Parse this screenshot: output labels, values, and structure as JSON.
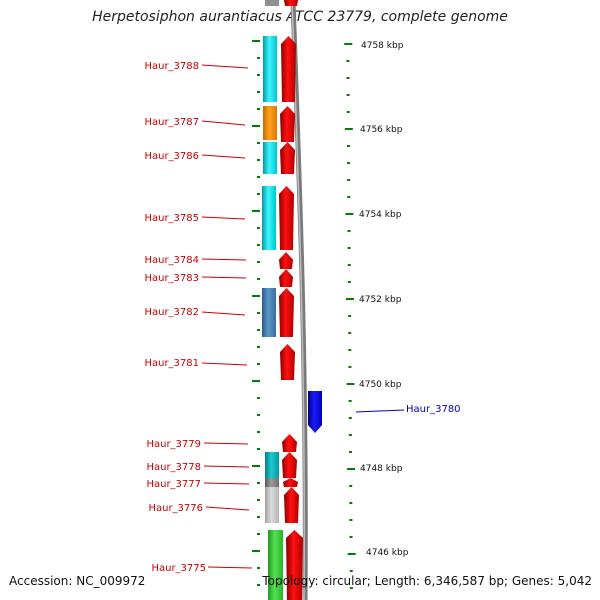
{
  "title": "Herpetosiphon aurantiacus ATCC 23779, complete genome",
  "footer": {
    "accession": "Accession: NC_009972",
    "topology": "Topology: circular; Length: 6,346,587 bp; Genes: 5,042"
  },
  "colors": {
    "label_red": "#cc0000",
    "label_blue": "#0000cc",
    "cds_forward": "#ee0000",
    "cds_reverse": "#0000ee",
    "tick_green": "#008000",
    "axis_gray": "#888888",
    "cyan": "#00e5ee",
    "orange": "#ff8c00",
    "steelblue": "#4682b4",
    "darkcyan": "#00b5be",
    "gray": "#808080",
    "silver": "#c0c0c0",
    "green": "#33cc33"
  },
  "scale_labels": [
    "4758 kbp",
    "4756 kbp",
    "4754 kbp",
    "4752 kbp",
    "4750 kbp",
    "4748 kbp",
    "4746 kbp"
  ],
  "genes": [
    {
      "label": "Haur_3788",
      "side": "left",
      "feature_color": "cyan",
      "strand": "forward"
    },
    {
      "label": "Haur_3787",
      "side": "left",
      "feature_color": "orange",
      "strand": "forward"
    },
    {
      "label": "Haur_3786",
      "side": "left",
      "feature_color": "cyan",
      "strand": "forward"
    },
    {
      "label": "Haur_3785",
      "side": "left",
      "feature_color": "cyan",
      "strand": "forward"
    },
    {
      "label": "Haur_3784",
      "side": "left",
      "feature_color": "",
      "strand": "forward"
    },
    {
      "label": "Haur_3783",
      "side": "left",
      "feature_color": "",
      "strand": "forward"
    },
    {
      "label": "Haur_3782",
      "side": "left",
      "feature_color": "steelblue",
      "strand": "forward"
    },
    {
      "label": "Haur_3781",
      "side": "left",
      "feature_color": "",
      "strand": "forward"
    },
    {
      "label": "Haur_3780",
      "side": "right",
      "feature_color": "",
      "strand": "reverse"
    },
    {
      "label": "Haur_3779",
      "side": "left",
      "feature_color": "",
      "strand": "forward"
    },
    {
      "label": "Haur_3778",
      "side": "left",
      "feature_color": "darkcyan",
      "strand": "forward"
    },
    {
      "label": "Haur_3777",
      "side": "left",
      "feature_color": "gray",
      "strand": "forward"
    },
    {
      "label": "Haur_3776",
      "side": "left",
      "feature_color": "silver",
      "strand": "forward"
    },
    {
      "label": "Haur_3775",
      "side": "left",
      "feature_color": "green",
      "strand": "forward"
    }
  ]
}
